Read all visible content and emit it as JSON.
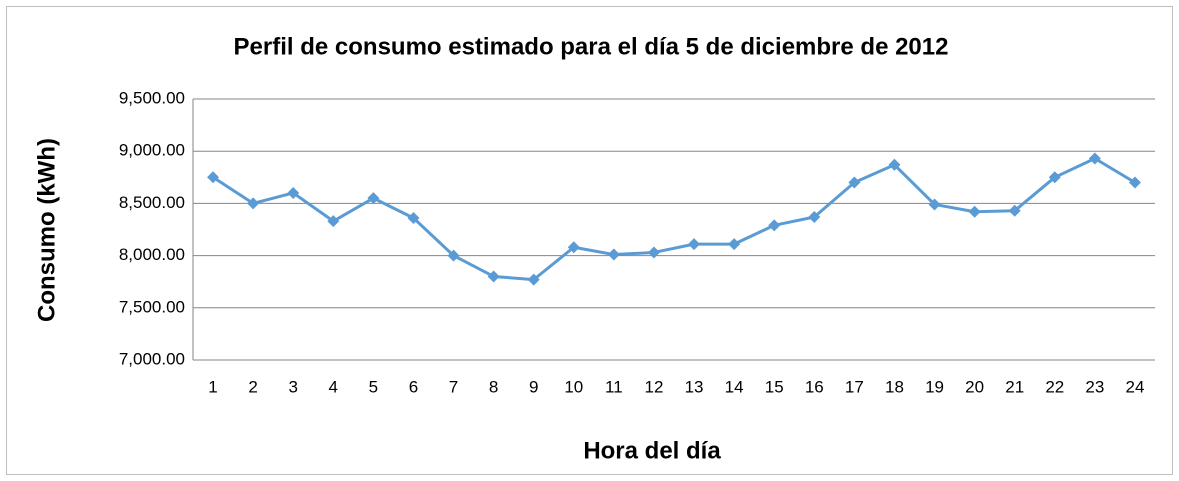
{
  "chart_data": {
    "type": "line",
    "title": "Perfil de consumo estimado para el día 5 de diciembre de 2012",
    "x_label": "Hora del  día",
    "y_label": "Consumo  (kWh)",
    "categories": [
      "1",
      "2",
      "3",
      "4",
      "5",
      "6",
      "7",
      "8",
      "9",
      "10",
      "11",
      "12",
      "13",
      "14",
      "15",
      "16",
      "17",
      "18",
      "19",
      "20",
      "21",
      "22",
      "23",
      "24"
    ],
    "series": [
      {
        "name": "Consumo",
        "color": "#5b9bd5",
        "values": [
          8750,
          8500,
          8600,
          8330,
          8550,
          8360,
          8000,
          7800,
          7770,
          8080,
          8010,
          8030,
          8110,
          8110,
          8290,
          8370,
          8700,
          8870,
          8490,
          8420,
          8430,
          8750,
          8930,
          8700
        ]
      }
    ],
    "ylim": [
      7000,
      9500
    ],
    "yticks": [
      {
        "value": 7000,
        "label": "7,000.00"
      },
      {
        "value": 7500,
        "label": "7,500.00"
      },
      {
        "value": 8000,
        "label": "8,000.00"
      },
      {
        "value": 8500,
        "label": "8,500.00"
      },
      {
        "value": 9000,
        "label": "9,000.00"
      },
      {
        "value": 9500,
        "label": "9,500.00"
      }
    ],
    "grid": true
  }
}
